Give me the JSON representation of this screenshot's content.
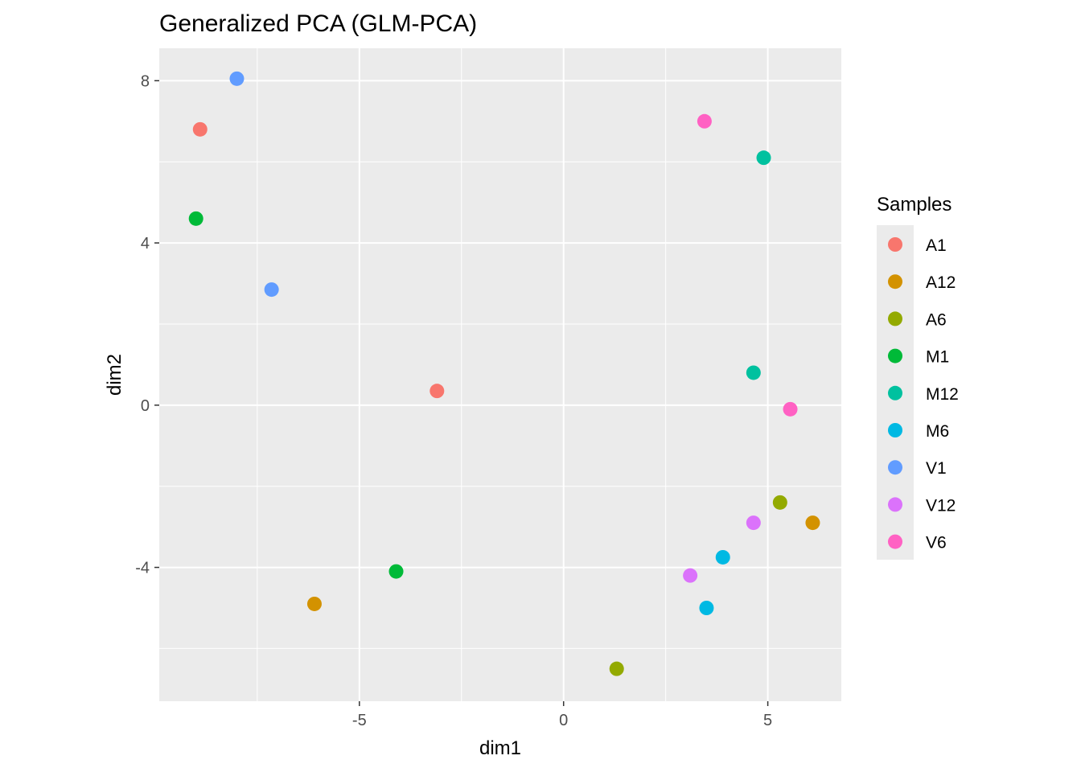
{
  "chart_data": {
    "type": "scatter",
    "title": "Generalized PCA (GLM-PCA)",
    "xlabel": "dim1",
    "ylabel": "dim2",
    "xlim": [
      -9.9,
      6.8
    ],
    "ylim": [
      -7.3,
      8.8
    ],
    "x_ticks": [
      -5,
      0,
      5
    ],
    "y_ticks": [
      -4,
      0,
      4,
      8
    ],
    "x_tick_labels": [
      "-5",
      "0",
      "5"
    ],
    "y_tick_labels": [
      "-4",
      "0",
      "4",
      "8"
    ],
    "grid": true,
    "legend": {
      "title": "Samples",
      "position": "right"
    },
    "series": [
      {
        "name": "A1",
        "color": "#F8766D",
        "points": [
          [
            -8.9,
            6.8
          ],
          [
            -3.1,
            0.35
          ]
        ]
      },
      {
        "name": "A12",
        "color": "#D39200",
        "points": [
          [
            -6.1,
            -4.9
          ],
          [
            6.1,
            -2.9
          ]
        ]
      },
      {
        "name": "A6",
        "color": "#93AA00",
        "points": [
          [
            1.3,
            -6.5
          ],
          [
            5.3,
            -2.4
          ]
        ]
      },
      {
        "name": "M1",
        "color": "#00BA38",
        "points": [
          [
            -9.0,
            4.6
          ],
          [
            -4.1,
            -4.1
          ]
        ]
      },
      {
        "name": "M12",
        "color": "#00C19F",
        "points": [
          [
            4.9,
            6.1
          ],
          [
            4.65,
            0.8
          ]
        ]
      },
      {
        "name": "M6",
        "color": "#00B9E3",
        "points": [
          [
            3.9,
            -3.75
          ],
          [
            3.5,
            -5.0
          ]
        ]
      },
      {
        "name": "V1",
        "color": "#619CFF",
        "points": [
          [
            -8.0,
            8.05
          ],
          [
            -7.15,
            2.85
          ]
        ]
      },
      {
        "name": "V12",
        "color": "#DB72FB",
        "points": [
          [
            4.65,
            -2.9
          ],
          [
            3.1,
            -4.2
          ]
        ]
      },
      {
        "name": "V6",
        "color": "#FF61C3",
        "points": [
          [
            3.45,
            7.0
          ],
          [
            5.55,
            -0.1
          ]
        ]
      }
    ]
  }
}
